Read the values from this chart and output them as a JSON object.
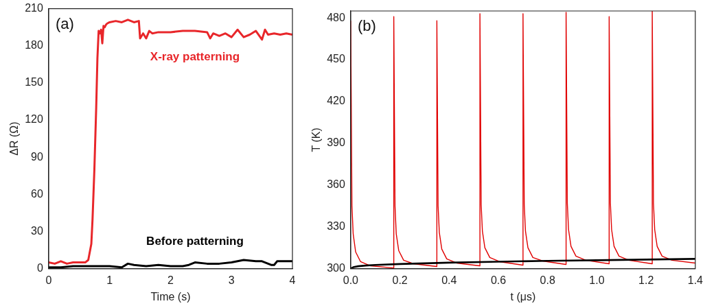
{
  "chart_data": [
    {
      "type": "line",
      "xlabel": "Time (s)",
      "ylabel": "ΔR (Ω)",
      "annotations": [
        "(a)"
      ],
      "xlim": [
        0,
        4
      ],
      "xticks": [
        0,
        1,
        2,
        3,
        4
      ],
      "ylim": [
        0,
        210
      ],
      "yticks": [
        0,
        30,
        60,
        90,
        120,
        150,
        180,
        210
      ],
      "grid": false,
      "legend": false,
      "marker": "none",
      "line_style": "solid",
      "series": [
        {
          "name": "X-ray patterning",
          "color": "#e8262a",
          "x": [
            0,
            0.1,
            0.2,
            0.3,
            0.4,
            0.5,
            0.6,
            0.65,
            0.7,
            0.72,
            0.75,
            0.78,
            0.8,
            0.82,
            0.84,
            0.86,
            0.88,
            0.9,
            0.92,
            0.94,
            0.96,
            1.0,
            1.1,
            1.2,
            1.3,
            1.4,
            1.48,
            1.5,
            1.55,
            1.6,
            1.65,
            1.7,
            1.8,
            2.0,
            2.2,
            2.4,
            2.6,
            2.65,
            2.7,
            2.8,
            2.9,
            3.0,
            3.1,
            3.2,
            3.3,
            3.4,
            3.5,
            3.55,
            3.6,
            3.7,
            3.8,
            3.9,
            4.0
          ],
          "values": [
            5,
            4,
            6,
            4,
            5,
            5,
            5,
            7,
            20,
            40,
            80,
            130,
            170,
            192,
            190,
            193,
            182,
            196,
            195,
            197,
            198,
            199,
            200,
            199,
            201,
            199,
            200,
            186,
            190,
            186,
            192,
            190,
            191,
            191,
            192,
            192,
            191,
            186,
            190,
            188,
            190,
            187,
            193,
            187,
            189,
            192,
            185,
            193,
            189,
            190,
            189,
            190,
            189
          ]
        },
        {
          "name": "Before patterning",
          "color": "#000000",
          "x": [
            0,
            0.2,
            0.4,
            0.6,
            0.8,
            1.0,
            1.2,
            1.3,
            1.4,
            1.6,
            1.8,
            2.0,
            2.2,
            2.3,
            2.4,
            2.6,
            2.8,
            3.0,
            3.2,
            3.4,
            3.5,
            3.6,
            3.65,
            3.7,
            3.75,
            3.8,
            4.0
          ],
          "values": [
            1,
            1,
            2,
            2,
            2,
            2,
            1,
            4,
            3,
            2,
            3,
            2,
            2,
            3,
            5,
            4,
            4,
            5,
            7,
            6,
            6,
            4,
            3,
            3,
            6,
            6,
            6
          ]
        }
      ]
    },
    {
      "type": "line",
      "xlabel": "t (μs)",
      "ylabel": "T (K)",
      "annotations": [
        "(b)"
      ],
      "xlim": [
        0,
        1.4
      ],
      "xticks": [
        {
          "value": 0,
          "label": "0.0"
        },
        0.2,
        0.4,
        0.6,
        0.8,
        {
          "value": 1,
          "label": "1.0"
        },
        1.2,
        1.4
      ],
      "ylim": [
        300,
        485
      ],
      "yticks": [
        300,
        330,
        360,
        390,
        420,
        450,
        480
      ],
      "grid": false,
      "legend": false,
      "marker": "none",
      "line_style": "solid",
      "series": [
        {
          "color": "#e00000",
          "x": [
            0,
            0.005,
            0.01,
            0.02,
            0.04,
            0.08,
            0.174,
            0.175,
            0.175,
            0.18,
            0.185,
            0.195,
            0.215,
            0.255,
            0.349,
            0.35,
            0.35,
            0.355,
            0.36,
            0.37,
            0.39,
            0.43,
            0.524,
            0.525,
            0.525,
            0.53,
            0.535,
            0.545,
            0.565,
            0.605,
            0.699,
            0.7,
            0.7,
            0.705,
            0.71,
            0.72,
            0.74,
            0.78,
            0.874,
            0.875,
            0.875,
            0.88,
            0.885,
            0.895,
            0.915,
            0.955,
            1.049,
            1.05,
            1.05,
            1.055,
            1.06,
            1.07,
            1.09,
            1.13,
            1.224,
            1.225,
            1.225,
            1.23,
            1.235,
            1.245,
            1.265,
            1.305,
            1.4
          ],
          "values": [
            478,
            345,
            325,
            312,
            305,
            302,
            300.5,
            300.5,
            481,
            345,
            325,
            313,
            306,
            303.5,
            301.5,
            301.5,
            478,
            345,
            326,
            314,
            307,
            304,
            302,
            302,
            483,
            346,
            327,
            315,
            308,
            305,
            302.5,
            302.5,
            483,
            346,
            327,
            315,
            308,
            305.5,
            303,
            303,
            484,
            347,
            328,
            316,
            309,
            306,
            303.5,
            303.5,
            481,
            347,
            328,
            316,
            309,
            306,
            303.5,
            303.5,
            485,
            347,
            328,
            316,
            309,
            306,
            304
          ]
        },
        {
          "color": "#000000",
          "x": [
            0,
            0.01,
            0.03,
            0.06,
            0.1,
            0.2,
            0.4,
            0.6,
            0.8,
            1.0,
            1.2,
            1.4
          ],
          "values": [
            300,
            301,
            301.7,
            302.2,
            302.6,
            303.3,
            304.3,
            305,
            305.6,
            306,
            306.5,
            307
          ]
        }
      ]
    }
  ]
}
